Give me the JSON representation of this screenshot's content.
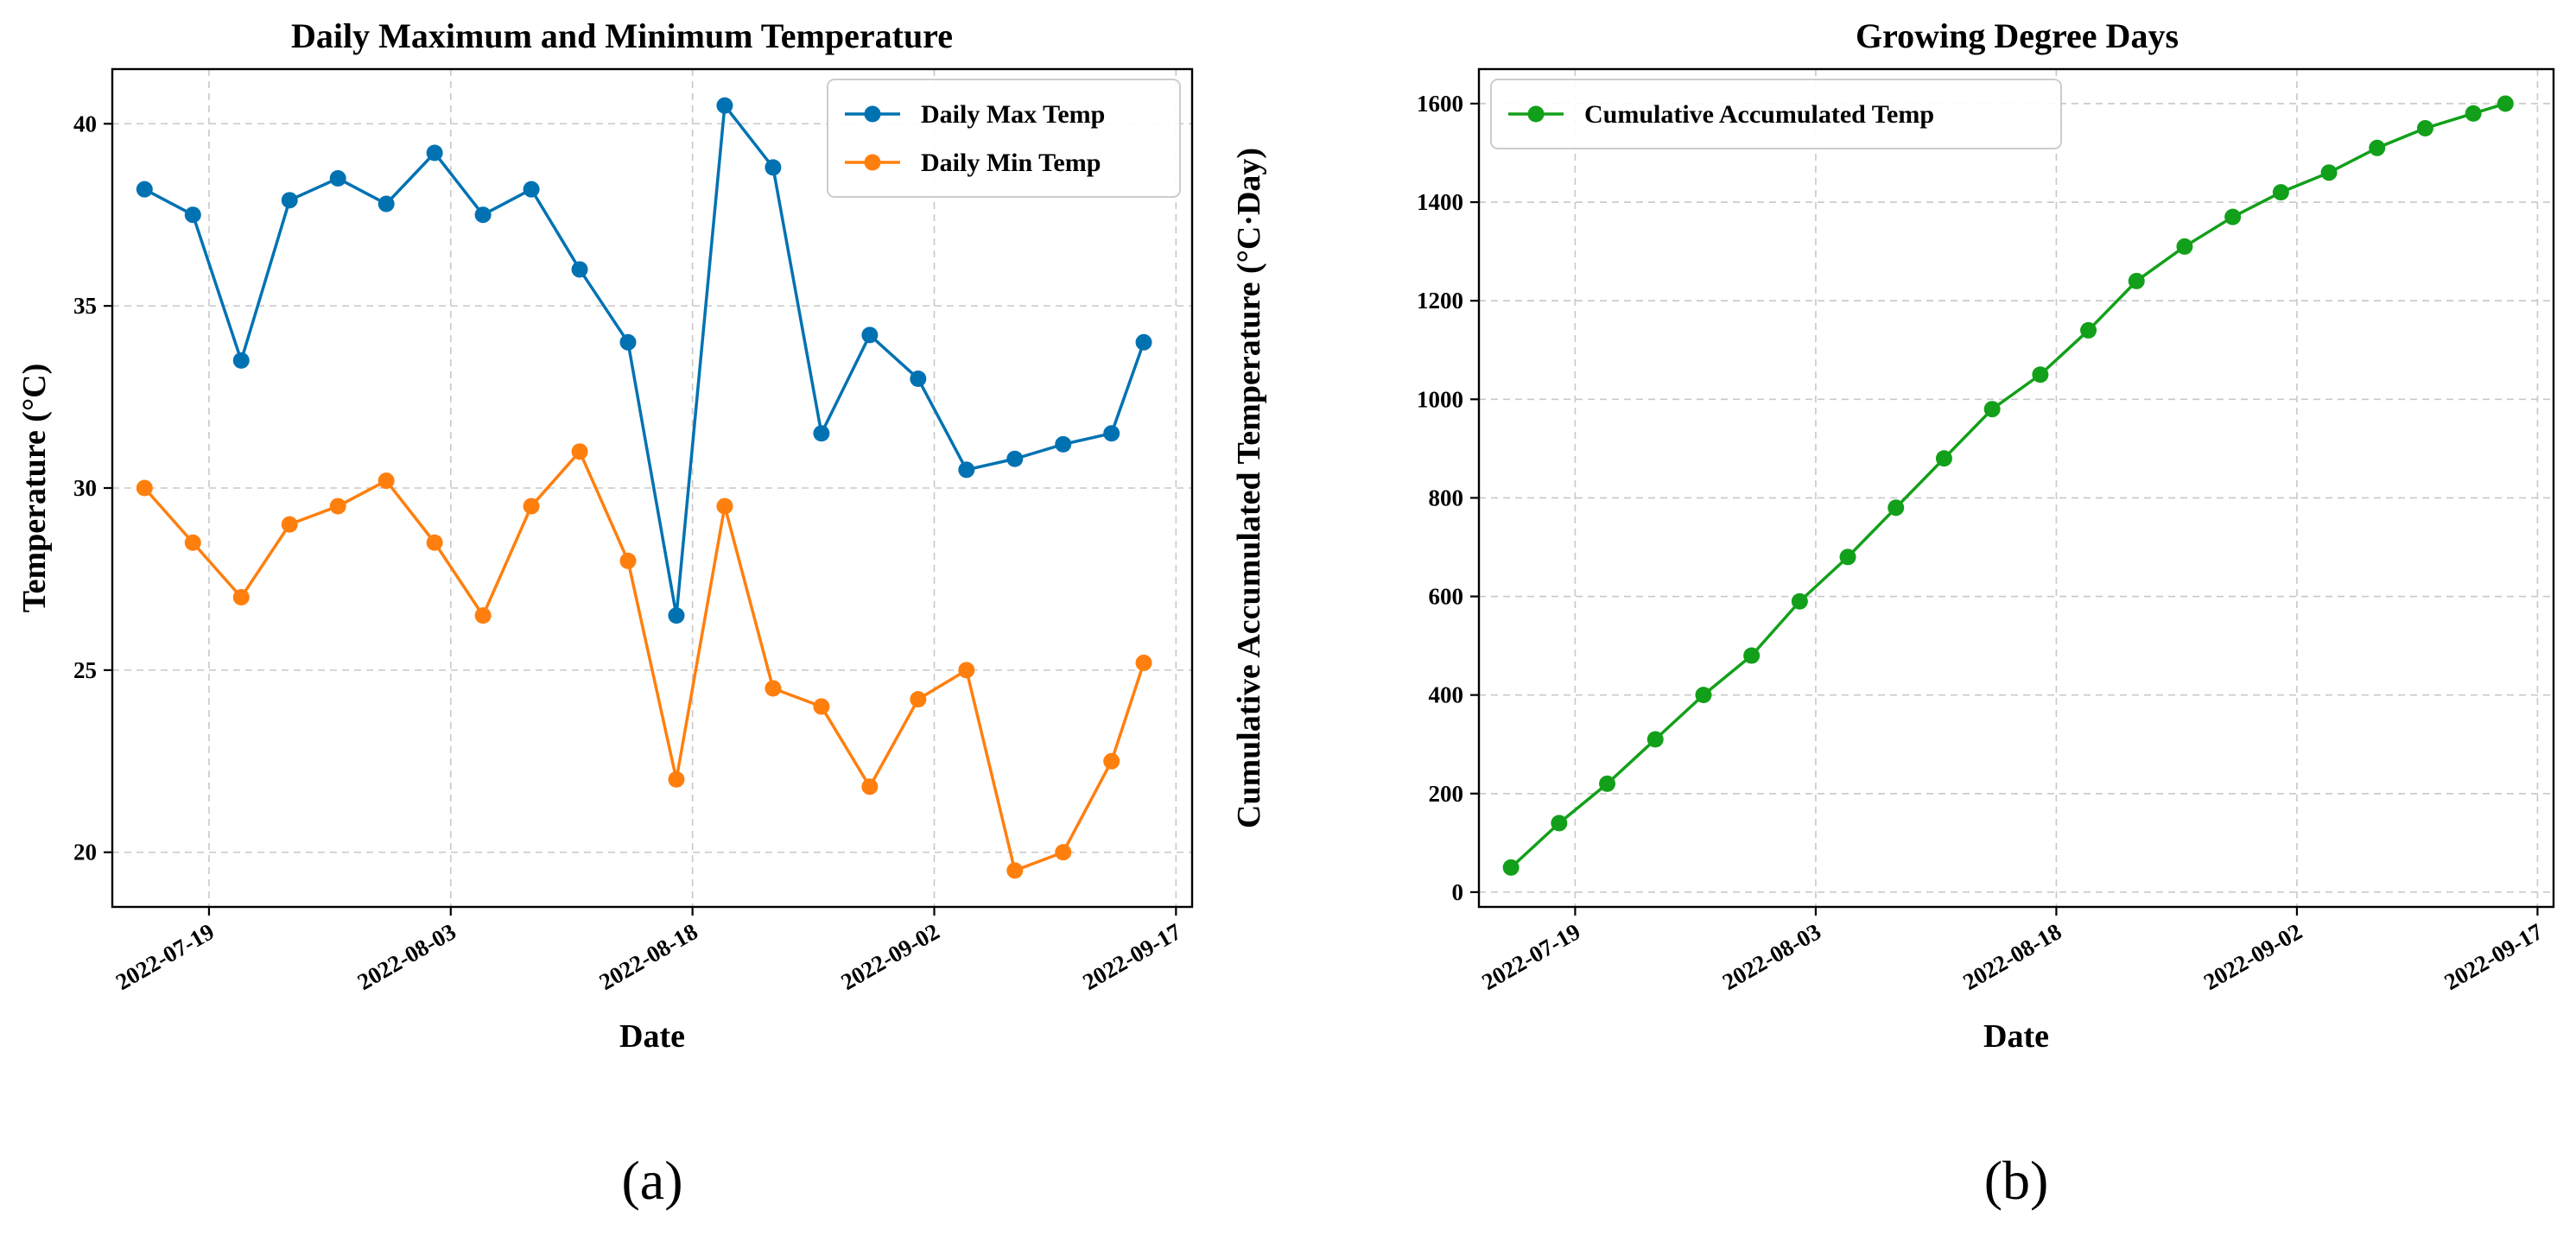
{
  "panels": {
    "a": {
      "label": "(a)"
    },
    "b": {
      "label": "(b)"
    }
  },
  "chart_data": [
    {
      "type": "line",
      "id": "temperature",
      "title": "Daily Maximum and Minimum Temperature",
      "xlabel": "Date",
      "ylabel": "Temperature (°C)",
      "x": [
        "2022-07-15",
        "2022-07-18",
        "2022-07-21",
        "2022-07-24",
        "2022-07-27",
        "2022-07-30",
        "2022-08-02",
        "2022-08-05",
        "2022-08-08",
        "2022-08-11",
        "2022-08-14",
        "2022-08-17",
        "2022-08-20",
        "2022-08-23",
        "2022-08-26",
        "2022-08-29",
        "2022-09-01",
        "2022-09-04",
        "2022-09-07",
        "2022-09-10",
        "2022-09-13",
        "2022-09-15"
      ],
      "series": [
        {
          "name": "Daily Max Temp",
          "color": "#0072b2",
          "values": [
            38.2,
            37.5,
            33.5,
            37.9,
            38.5,
            37.8,
            39.2,
            37.5,
            38.2,
            36.0,
            34.0,
            26.5,
            40.5,
            38.8,
            31.5,
            34.2,
            33.0,
            30.5,
            30.8,
            31.2,
            31.5,
            34.0
          ]
        },
        {
          "name": "Daily Min Temp",
          "color": "#ff7f0e",
          "values": [
            30.0,
            28.5,
            27.0,
            29.0,
            29.5,
            30.2,
            28.5,
            26.5,
            29.5,
            31.0,
            28.0,
            22.0,
            29.5,
            24.5,
            24.0,
            21.8,
            24.2,
            25.0,
            19.5,
            20.0,
            22.5,
            25.2
          ]
        }
      ],
      "xticks": [
        "2022-07-19",
        "2022-08-03",
        "2022-08-18",
        "2022-09-02",
        "2022-09-17"
      ],
      "yticks": [
        20,
        25,
        30,
        35,
        40
      ],
      "ylim": [
        18.5,
        41.5
      ],
      "xlim": [
        "2022-07-13",
        "2022-09-18"
      ],
      "grid": true,
      "legend": "top-right"
    },
    {
      "type": "line",
      "id": "gdd",
      "title": "Growing Degree Days",
      "xlabel": "Date",
      "ylabel": "Cumulative Accumulated Temperature (°C·Day)",
      "x": [
        "2022-07-15",
        "2022-07-18",
        "2022-07-21",
        "2022-07-24",
        "2022-07-27",
        "2022-07-30",
        "2022-08-02",
        "2022-08-05",
        "2022-08-08",
        "2022-08-11",
        "2022-08-14",
        "2022-08-17",
        "2022-08-20",
        "2022-08-23",
        "2022-08-26",
        "2022-08-29",
        "2022-09-01",
        "2022-09-04",
        "2022-09-07",
        "2022-09-10",
        "2022-09-13",
        "2022-09-15"
      ],
      "series": [
        {
          "name": "Cumulative Accumulated Temp",
          "color": "#12a01a",
          "values": [
            50,
            140,
            220,
            310,
            400,
            480,
            590,
            680,
            780,
            880,
            980,
            1050,
            1140,
            1240,
            1310,
            1370,
            1420,
            1460,
            1510,
            1550,
            1580,
            1600
          ]
        }
      ],
      "xticks": [
        "2022-07-19",
        "2022-08-03",
        "2022-08-18",
        "2022-09-02",
        "2022-09-17"
      ],
      "yticks": [
        0,
        200,
        400,
        600,
        800,
        1000,
        1200,
        1400,
        1600
      ],
      "ylim": [
        -30,
        1670
      ],
      "xlim": [
        "2022-07-13",
        "2022-09-18"
      ],
      "grid": true,
      "legend": "top-left"
    }
  ]
}
